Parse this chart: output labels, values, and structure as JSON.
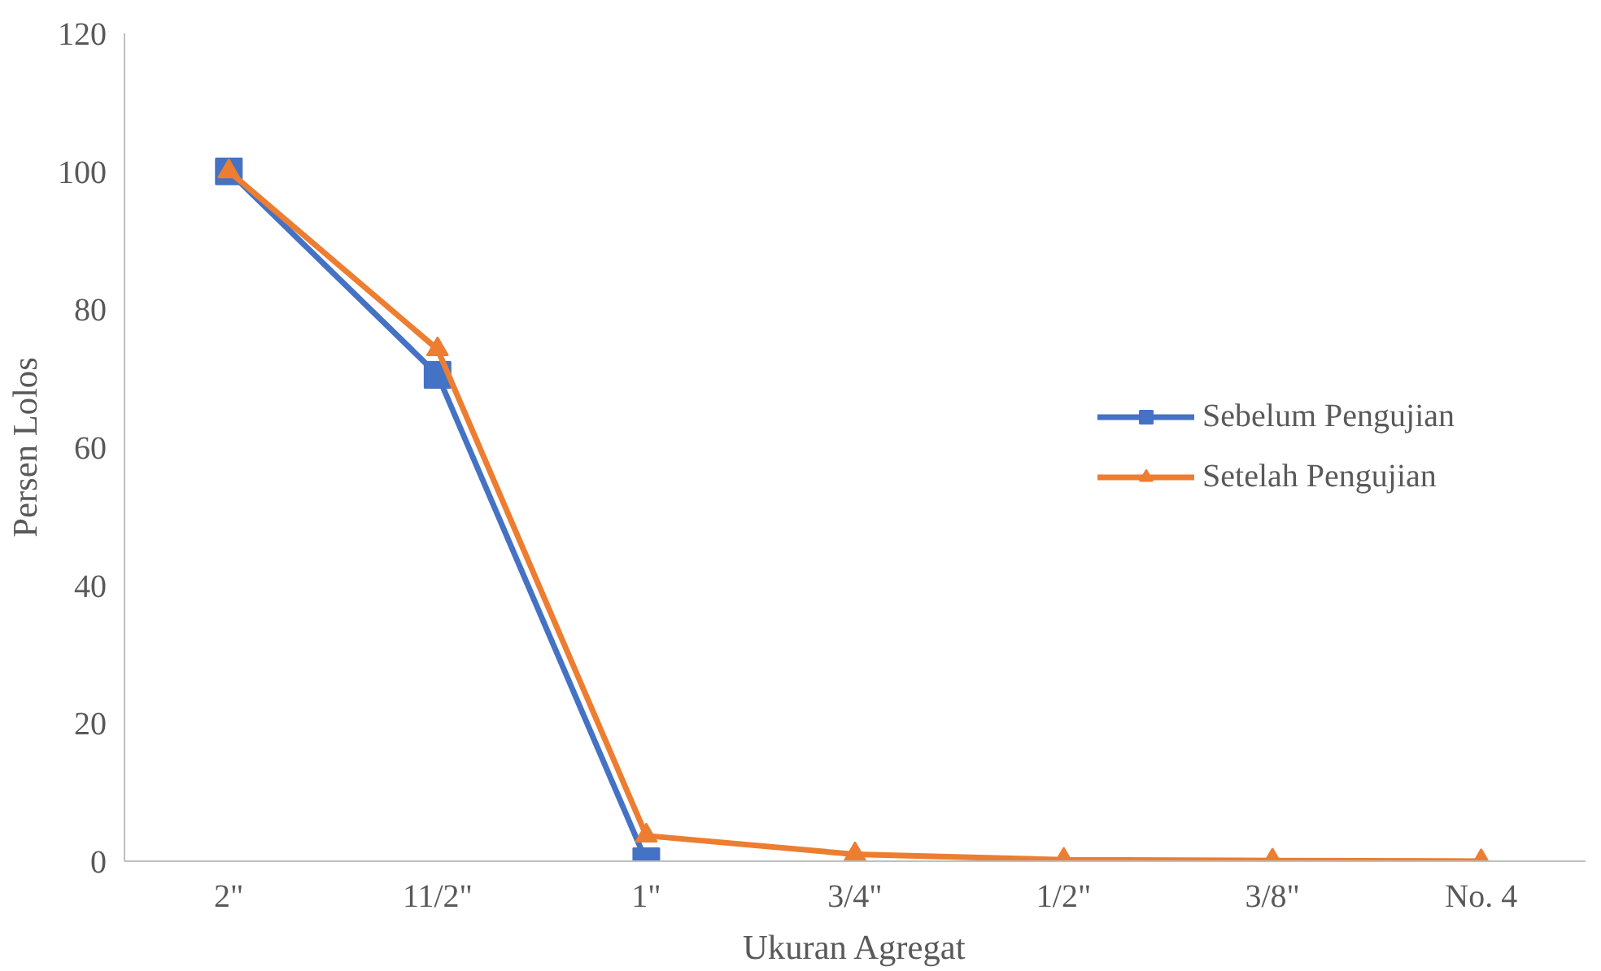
{
  "chart_data": {
    "type": "line",
    "xlabel": "Ukuran Agregat",
    "ylabel": "Persen Lolos",
    "categories": [
      "2\"",
      "11/2\"",
      "1\"",
      "3/4\"",
      "1/2\"",
      "3/8\"",
      "No. 4"
    ],
    "series": [
      {
        "name": "Sebelum Pengujian",
        "color": "#4472c4",
        "marker": "square",
        "values": [
          100,
          70.5,
          0,
          null,
          null,
          null,
          null
        ]
      },
      {
        "name": "Setelah Pengujian",
        "color": "#ed7d31",
        "marker": "triangle",
        "values": [
          100,
          74.2,
          3.7,
          1.0,
          0.2,
          0.1,
          0
        ]
      }
    ],
    "ylim": [
      0,
      120
    ],
    "yticks": [
      0,
      20,
      40,
      60,
      80,
      100,
      120
    ],
    "grid": false,
    "legend": "right",
    "line_style": "solid"
  }
}
